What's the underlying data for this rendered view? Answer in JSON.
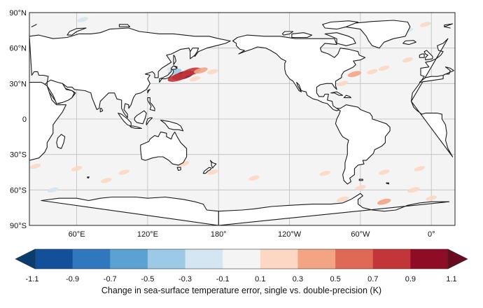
{
  "map": {
    "projection": "plate-carree",
    "central_longitude": 180,
    "lat_range": [
      -90,
      90
    ],
    "gridlines": true,
    "lat_ticks": [
      {
        "value": 90,
        "label": "90°N"
      },
      {
        "value": 60,
        "label": "60°N"
      },
      {
        "value": 30,
        "label": "30°N"
      },
      {
        "value": 0,
        "label": "0"
      },
      {
        "value": -30,
        "label": "30°S"
      },
      {
        "value": -60,
        "label": "60°S"
      },
      {
        "value": -90,
        "label": "90°S"
      }
    ],
    "lon_ticks": [
      {
        "value": 60,
        "label": "60°E"
      },
      {
        "value": 120,
        "label": "120°E"
      },
      {
        "value": 180,
        "label": "180°"
      },
      {
        "value": -120,
        "label": "120°W"
      },
      {
        "value": -60,
        "label": "60°W"
      },
      {
        "value": 0,
        "label": "0°"
      }
    ],
    "ocean_color": "#f4f4f4",
    "land_color": "#ffffff",
    "coastline_color": "#1a1a1a"
  },
  "colorbar": {
    "label": "Change in sea-surface temperature error, single vs. double-precision (K)",
    "orientation": "horizontal",
    "extend": "both",
    "tick_labels": [
      "-1.1",
      "-0.9",
      "-0.7",
      "-0.5",
      "-0.3",
      "-0.1",
      "0.1",
      "0.3",
      "0.5",
      "0.7",
      "0.9",
      "1.1"
    ],
    "under_color": "#0b3c6e",
    "over_color": "#6a0a1f",
    "bins": [
      {
        "min": -1.1,
        "max": -0.9,
        "color": "#125099"
      },
      {
        "min": -0.9,
        "max": -0.7,
        "color": "#2f78bd"
      },
      {
        "min": -0.7,
        "max": -0.5,
        "color": "#5aa2d2"
      },
      {
        "min": -0.5,
        "max": -0.3,
        "color": "#9ccae6"
      },
      {
        "min": -0.3,
        "max": -0.1,
        "color": "#d3e6f2"
      },
      {
        "min": -0.1,
        "max": 0.1,
        "color": "#f4f4f4"
      },
      {
        "min": 0.1,
        "max": 0.3,
        "color": "#fcd7c3"
      },
      {
        "min": 0.3,
        "max": 0.5,
        "color": "#f3a583"
      },
      {
        "min": 0.5,
        "max": 0.7,
        "color": "#de6a55"
      },
      {
        "min": 0.7,
        "max": 0.9,
        "color": "#c23538"
      },
      {
        "min": 0.9,
        "max": 1.1,
        "color": "#8e0c26"
      }
    ]
  },
  "anomalies": [
    {
      "lon": 150,
      "lat": 37,
      "value": 1.0
    },
    {
      "lon": 157,
      "lat": 40,
      "value": 0.8
    },
    {
      "lon": 145,
      "lat": 35,
      "value": 0.8
    },
    {
      "lon": 165,
      "lat": 41,
      "value": 0.4
    },
    {
      "lon": 175,
      "lat": 40,
      "value": 0.2
    },
    {
      "lon": 160,
      "lat": 34,
      "value": 0.2
    },
    {
      "lon": 143,
      "lat": 40,
      "value": -0.4
    },
    {
      "lon": 141,
      "lat": 43,
      "value": -0.2
    },
    {
      "lon": -65,
      "lat": 38,
      "value": 0.4
    },
    {
      "lon": -50,
      "lat": 40,
      "value": 0.2
    },
    {
      "lon": -40,
      "lat": 43,
      "value": 0.2
    },
    {
      "lon": -20,
      "lat": 50,
      "value": 0.2
    },
    {
      "lon": -75,
      "lat": 30,
      "value": 0.2
    },
    {
      "lon": 65,
      "lat": 84,
      "value": -0.2
    },
    {
      "lon": -5,
      "lat": 80,
      "value": 0.2
    },
    {
      "lon": -20,
      "lat": 75,
      "value": -0.2
    },
    {
      "lon": 25,
      "lat": -40,
      "value": 0.2
    },
    {
      "lon": 60,
      "lat": -42,
      "value": 0.2
    },
    {
      "lon": 100,
      "lat": -45,
      "value": 0.2
    },
    {
      "lon": 150,
      "lat": -38,
      "value": 0.3
    },
    {
      "lon": 175,
      "lat": -45,
      "value": 0.2
    },
    {
      "lon": -150,
      "lat": -50,
      "value": 0.2
    },
    {
      "lon": -90,
      "lat": -46,
      "value": 0.2
    },
    {
      "lon": -40,
      "lat": -45,
      "value": 0.2
    },
    {
      "lon": -10,
      "lat": -42,
      "value": 0.2
    },
    {
      "lon": -60,
      "lat": -58,
      "value": 0.2
    },
    {
      "lon": -15,
      "lat": -60,
      "value": 0.3
    },
    {
      "lon": 85,
      "lat": -52,
      "value": 0.2
    },
    {
      "lon": -75,
      "lat": -68,
      "value": 0.3
    },
    {
      "lon": -40,
      "lat": -70,
      "value": 0.4
    },
    {
      "lon": 0,
      "lat": -67,
      "value": 0.2
    },
    {
      "lon": 40,
      "lat": -60,
      "value": -0.2
    }
  ]
}
